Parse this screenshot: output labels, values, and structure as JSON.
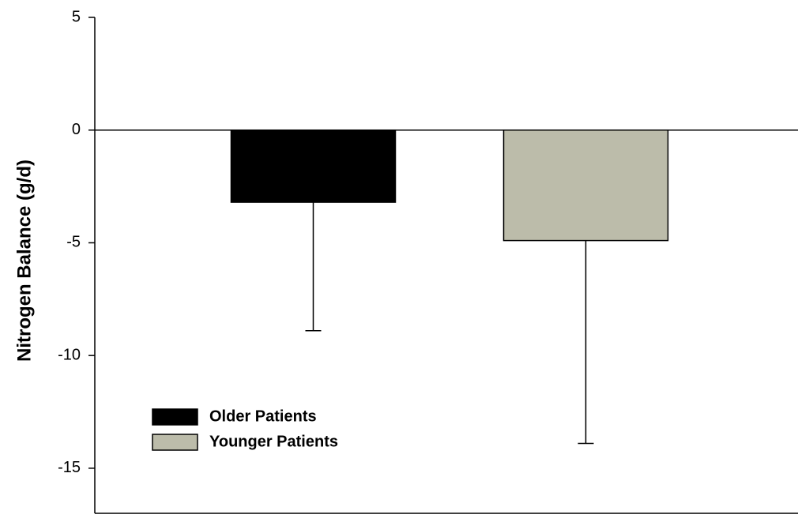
{
  "chart_data": {
    "type": "bar",
    "y_label": "Nitrogen Balance (g/d)",
    "categories": [
      null
    ],
    "series": [
      {
        "name": "Older Patients",
        "color": "#000000",
        "values": [
          -3.2
        ],
        "errors": [
          5.7
        ]
      },
      {
        "name": "Younger Patients",
        "color": "#bcbcaa",
        "values": [
          -4.9
        ],
        "errors": [
          9.0
        ]
      }
    ],
    "ylim": [
      -17,
      5
    ],
    "yticks": [
      5,
      0,
      -5,
      -10,
      -15
    ],
    "legend": "lower left"
  }
}
